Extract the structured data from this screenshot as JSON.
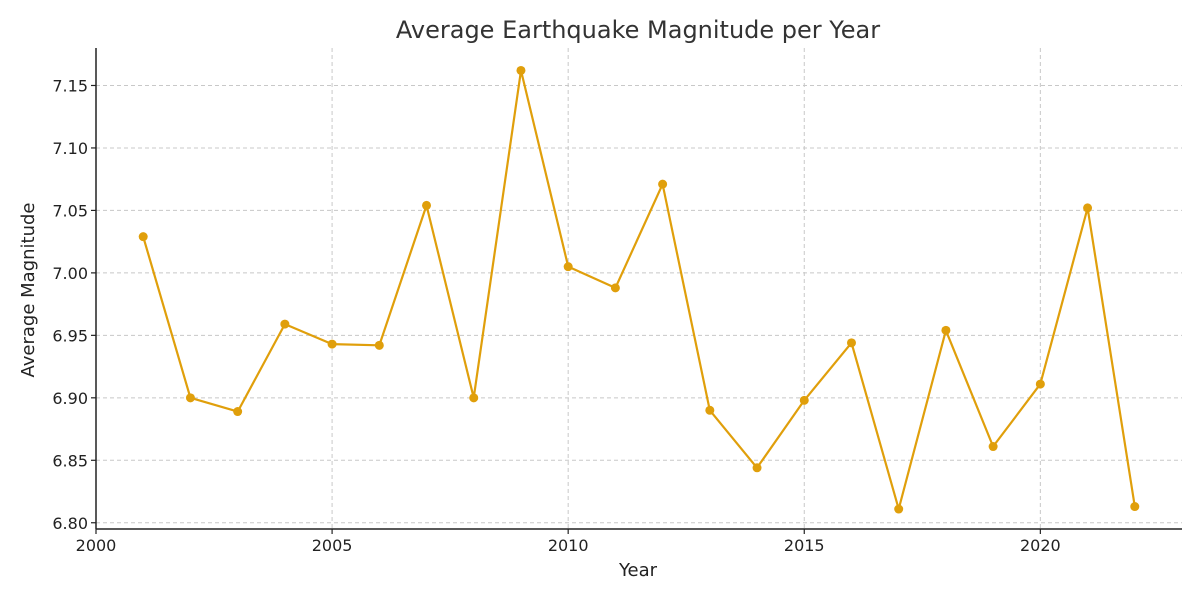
{
  "chart_data": {
    "type": "line",
    "title": "Average Earthquake Magnitude per Year",
    "xlabel": "Year",
    "ylabel": "Average Magnitude",
    "xlim": [
      2000,
      2023
    ],
    "ylim": [
      6.795,
      7.18
    ],
    "xticks": [
      2000,
      2005,
      2010,
      2015,
      2020
    ],
    "xtick_labels": [
      "2000",
      "2005",
      "2010",
      "2015",
      "2020"
    ],
    "yticks": [
      6.8,
      6.85,
      6.9,
      6.95,
      7.0,
      7.05,
      7.1,
      7.15
    ],
    "ytick_labels": [
      "6.80",
      "6.85",
      "6.90",
      "6.95",
      "7.00",
      "7.05",
      "7.10",
      "7.15"
    ],
    "grid": true,
    "series": [
      {
        "name": "Average Magnitude",
        "color": "#E09F0B",
        "x": [
          2001,
          2002,
          2003,
          2004,
          2005,
          2006,
          2007,
          2008,
          2009,
          2010,
          2011,
          2012,
          2013,
          2014,
          2015,
          2016,
          2017,
          2018,
          2019,
          2020,
          2021,
          2022
        ],
        "values": [
          7.029,
          6.9,
          6.889,
          6.959,
          6.943,
          6.942,
          7.054,
          6.9,
          7.162,
          7.005,
          6.988,
          7.071,
          6.89,
          6.844,
          6.898,
          6.944,
          6.811,
          6.954,
          6.861,
          6.911,
          7.052,
          6.813
        ]
      }
    ]
  }
}
